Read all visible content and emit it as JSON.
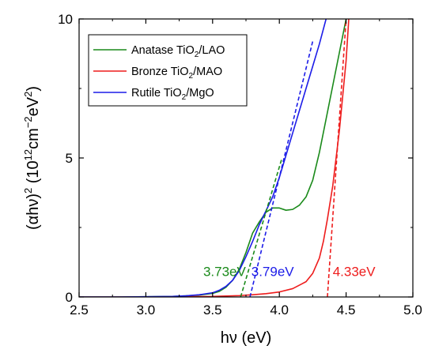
{
  "chart_data": {
    "type": "line",
    "title": "",
    "xlabel": "hν (eV)",
    "ylabel_parts": {
      "base": "(αhν)",
      "exp1": "2",
      "mid": " (10",
      "exp2": "12",
      "mid2": "cm",
      "exp3": "−2",
      "mid3": "eV",
      "exp4": "2",
      "end": ")"
    },
    "xlim": [
      2.5,
      5.0
    ],
    "ylim": [
      0,
      10
    ],
    "xticks": [
      2.5,
      3.0,
      3.5,
      4.0,
      4.5,
      5.0
    ],
    "xtick_labels": [
      "2.5",
      "3.0",
      "3.5",
      "4.0",
      "4.5",
      "5.0"
    ],
    "yticks": [
      0,
      5,
      10
    ],
    "ytick_labels": [
      "0",
      "5",
      "10"
    ],
    "grid": false,
    "legend_position": "top-left",
    "series": [
      {
        "name": "Anatase TiO2/LAO",
        "legend": {
          "pre": "Anatase TiO",
          "sub": "2",
          "post": "/LAO"
        },
        "color": "#1a8a1a",
        "x": [
          2.5,
          2.8,
          3.0,
          3.2,
          3.3,
          3.4,
          3.5,
          3.55,
          3.6,
          3.65,
          3.7,
          3.75,
          3.8,
          3.85,
          3.9,
          3.95,
          4.0,
          4.05,
          4.1,
          4.15,
          4.2,
          4.25,
          4.3,
          4.35,
          4.4,
          4.45,
          4.5
        ],
        "y": [
          0,
          0,
          0.01,
          0.02,
          0.04,
          0.07,
          0.13,
          0.2,
          0.35,
          0.6,
          1.0,
          1.6,
          2.3,
          2.7,
          3.05,
          3.2,
          3.2,
          3.12,
          3.15,
          3.3,
          3.6,
          4.2,
          5.2,
          6.4,
          7.6,
          8.8,
          10.0
        ]
      },
      {
        "name": "Bronze TiO2/MAO",
        "legend": {
          "pre": "Bronze TiO",
          "sub": "2",
          "post": "/MAO"
        },
        "color": "#ee1c1c",
        "x": [
          2.5,
          3.0,
          3.5,
          3.7,
          3.8,
          3.9,
          4.0,
          4.1,
          4.2,
          4.25,
          4.3,
          4.33,
          4.36,
          4.4,
          4.45,
          4.5,
          4.52
        ],
        "y": [
          0,
          0,
          0.02,
          0.05,
          0.08,
          0.12,
          0.18,
          0.3,
          0.55,
          0.85,
          1.4,
          2.0,
          2.8,
          4.0,
          6.0,
          8.5,
          10.0
        ]
      },
      {
        "name": "Rutile TiO2/MgO",
        "legend": {
          "pre": "Rutile TiO",
          "sub": "2",
          "post": "/MgO"
        },
        "color": "#1c1ce8",
        "x": [
          2.5,
          2.8,
          3.0,
          3.2,
          3.3,
          3.4,
          3.5,
          3.55,
          3.6,
          3.65,
          3.7,
          3.75,
          3.8,
          3.85,
          3.9,
          3.95,
          4.0,
          4.05,
          4.1,
          4.15,
          4.2,
          4.25,
          4.3,
          4.35
        ],
        "y": [
          0,
          0,
          0.01,
          0.02,
          0.04,
          0.08,
          0.15,
          0.24,
          0.38,
          0.6,
          0.95,
          1.45,
          2.0,
          2.6,
          3.1,
          3.6,
          4.3,
          5.1,
          5.9,
          6.7,
          7.5,
          8.3,
          9.1,
          10.0
        ]
      }
    ],
    "fit_lines": [
      {
        "color": "#1a8a1a",
        "x": [
          3.71,
          4.02
        ],
        "y": [
          0,
          5.0
        ]
      },
      {
        "color": "#ee1c1c",
        "x": [
          4.36,
          4.5
        ],
        "y": [
          0,
          10.0
        ]
      },
      {
        "color": "#1c1ce8",
        "x": [
          3.78,
          4.25
        ],
        "y": [
          0,
          9.2
        ]
      }
    ],
    "annotations": [
      {
        "text": "3.73eV",
        "color": "#1a8a1a",
        "x": 3.43,
        "y": 0.75
      },
      {
        "text": "3.79eV",
        "color": "#1c1ce8",
        "x": 3.79,
        "y": 0.75
      },
      {
        "text": "4.33eV",
        "color": "#ee1c1c",
        "x": 4.4,
        "y": 0.75
      }
    ]
  }
}
